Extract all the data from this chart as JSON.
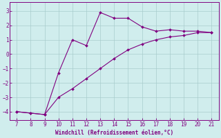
{
  "xlabel": "Windchill (Refroidissement éolien,°C)",
  "x_data": [
    7,
    8,
    9,
    10,
    11,
    12,
    13,
    14,
    15,
    16,
    17,
    18,
    19,
    20,
    21
  ],
  "y_data_upper": [
    -4.0,
    -4.1,
    -4.2,
    -1.3,
    1.0,
    0.6,
    2.9,
    2.5,
    2.5,
    1.9,
    1.6,
    1.7,
    1.6,
    1.6,
    1.5
  ],
  "y_data_lower": [
    -4.0,
    -4.1,
    -4.2,
    -3.0,
    -2.4,
    -1.7,
    -1.0,
    -0.3,
    0.3,
    0.7,
    1.0,
    1.2,
    1.3,
    1.5,
    1.5
  ],
  "line_color": "#800080",
  "bg_color": "#d0eded",
  "grid_color": "#a8cccc",
  "tick_color": "#800080",
  "label_color": "#800080",
  "xlim": [
    6.5,
    21.5
  ],
  "ylim": [
    -4.6,
    3.6
  ],
  "yticks": [
    -4,
    -3,
    -2,
    -1,
    0,
    1,
    2,
    3
  ],
  "xticks": [
    7,
    8,
    9,
    10,
    11,
    12,
    13,
    14,
    15,
    16,
    17,
    18,
    19,
    20,
    21
  ]
}
